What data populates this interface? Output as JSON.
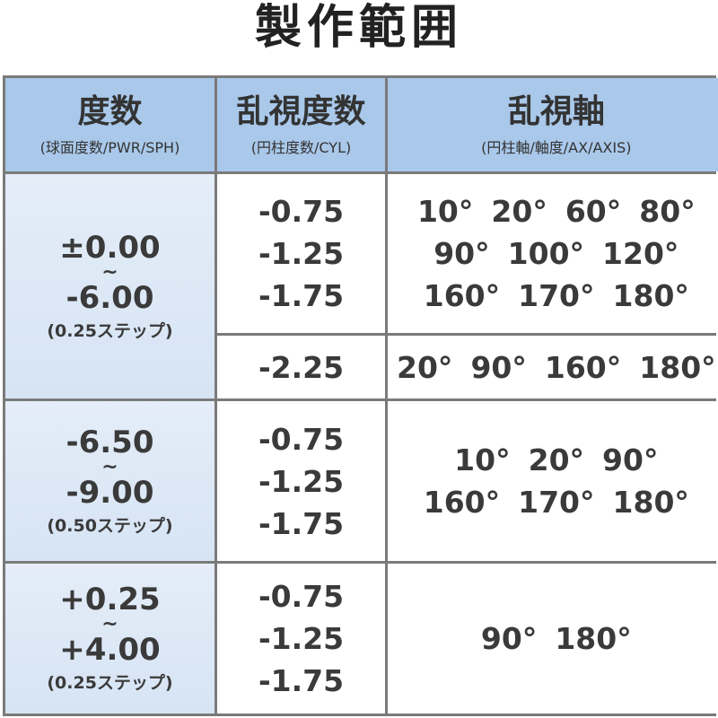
{
  "title": "製作範囲",
  "headers": [
    {
      "label": "度数",
      "sub": "(球面度数/PWR/SPH)"
    },
    {
      "label": "乱視度数",
      "sub": "(円柱度数/CYL)"
    },
    {
      "label": "乱視軸",
      "sub": "(円柱軸/軸度/AX/AXIS)"
    }
  ],
  "rows": [
    {
      "sph_from": "±0.00",
      "tilde": "~",
      "sph_to": "-6.00",
      "step": "(0.25ステップ)",
      "groups": [
        {
          "cyl": [
            "-0.75",
            "-1.25",
            "-1.75"
          ],
          "axis": [
            [
              "10°",
              "20°",
              "60°",
              "80°"
            ],
            [
              "90°",
              "100°",
              "120°"
            ],
            [
              "160°",
              "170°",
              "180°"
            ]
          ]
        },
        {
          "cyl": [
            "-2.25"
          ],
          "axis": [
            [
              "20°",
              "90°",
              "160°",
              "180°"
            ]
          ]
        }
      ]
    },
    {
      "sph_from": "-6.50",
      "tilde": "~",
      "sph_to": "-9.00",
      "step": "(0.50ステップ)",
      "groups": [
        {
          "cyl": [
            "-0.75",
            "-1.25",
            "-1.75"
          ],
          "axis": [
            [
              "10°",
              "20°",
              "90°"
            ],
            [
              "160°",
              "170°",
              "180°"
            ]
          ]
        }
      ]
    },
    {
      "sph_from": "+0.25",
      "tilde": "~",
      "sph_to": "+4.00",
      "step": "(0.25ステップ)",
      "groups": [
        {
          "cyl": [
            "-0.75",
            "-1.25",
            "-1.75"
          ],
          "axis": [
            [
              "90°",
              "180°"
            ]
          ]
        }
      ]
    }
  ],
  "colors": {
    "header_bg": "#a9c8ea",
    "sph_bg": "#dce8f6",
    "border": "#7a7a7a"
  }
}
